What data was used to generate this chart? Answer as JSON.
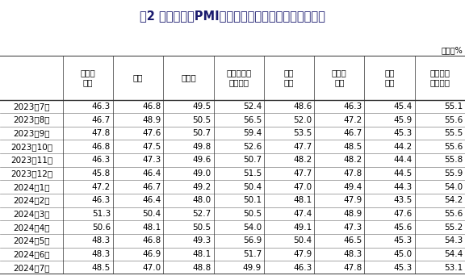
{
  "title": "表2 中国制造业PMI其他相关指标情况（经季节调整）",
  "unit_label": "单位：%",
  "col_headers": [
    "新出口\n订单",
    "进口",
    "采购量",
    "主要原材料\n购进价格",
    "出厂\n价格",
    "产成品\n库存",
    "在手\n订单",
    "生产经营\n活动预期"
  ],
  "row_labels": [
    "2023年7月",
    "2023年8月",
    "2023年9月",
    "2023年10月",
    "2023年11月",
    "2023年12月",
    "2024年1月",
    "2024年2月",
    "2024年3月",
    "2024年4月",
    "2024年5月",
    "2024年6月",
    "2024年7月"
  ],
  "table_data": [
    [
      46.3,
      46.8,
      49.5,
      52.4,
      48.6,
      46.3,
      45.4,
      55.1
    ],
    [
      46.7,
      48.9,
      50.5,
      56.5,
      52.0,
      47.2,
      45.9,
      55.6
    ],
    [
      47.8,
      47.6,
      50.7,
      59.4,
      53.5,
      46.7,
      45.3,
      55.5
    ],
    [
      46.8,
      47.5,
      49.8,
      52.6,
      47.7,
      48.5,
      44.2,
      55.6
    ],
    [
      46.3,
      47.3,
      49.6,
      50.7,
      48.2,
      48.2,
      44.4,
      55.8
    ],
    [
      45.8,
      46.4,
      49.0,
      51.5,
      47.7,
      47.8,
      44.5,
      55.9
    ],
    [
      47.2,
      46.7,
      49.2,
      50.4,
      47.0,
      49.4,
      44.3,
      54.0
    ],
    [
      46.3,
      46.4,
      48.0,
      50.1,
      48.1,
      47.9,
      43.5,
      54.2
    ],
    [
      51.3,
      50.4,
      52.7,
      50.5,
      47.4,
      48.9,
      47.6,
      55.6
    ],
    [
      50.6,
      48.1,
      50.5,
      54.0,
      49.1,
      47.3,
      45.6,
      55.2
    ],
    [
      48.3,
      46.8,
      49.3,
      56.9,
      50.4,
      46.5,
      45.3,
      54.3
    ],
    [
      48.3,
      46.9,
      48.1,
      51.7,
      47.9,
      48.3,
      45.0,
      54.4
    ],
    [
      48.5,
      47.0,
      48.8,
      49.9,
      46.3,
      47.8,
      45.3,
      53.1
    ]
  ],
  "bg_color": "#ffffff",
  "text_color": "#000000",
  "title_color": "#1a1a6e",
  "border_color": "#333333",
  "title_fontsize": 10.5,
  "header_fontsize": 7.5,
  "data_fontsize": 7.5,
  "row_label_fontsize": 7.5,
  "unit_fontsize": 7.0
}
